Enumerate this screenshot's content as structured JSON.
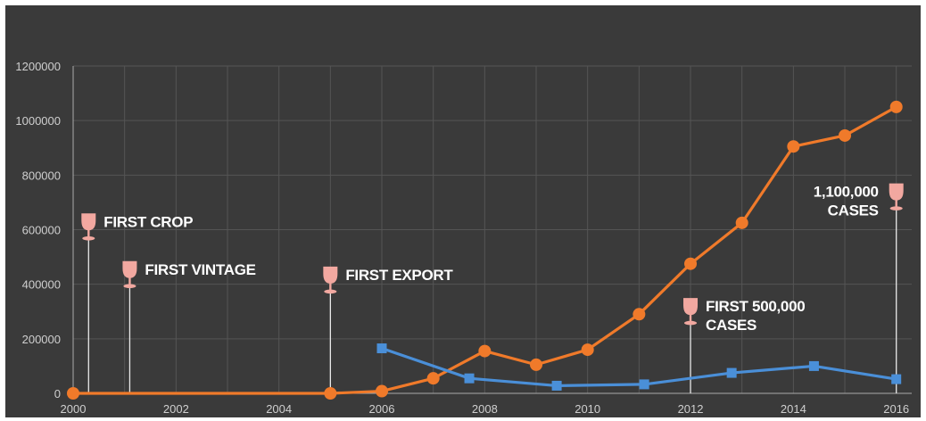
{
  "chart_data": {
    "type": "line",
    "title": "",
    "xlabel": "",
    "ylabel": "",
    "xlim": [
      2000,
      2016.3
    ],
    "ylim": [
      0,
      1200000
    ],
    "grid": true,
    "x_ticks": [
      2000,
      2002,
      2004,
      2006,
      2008,
      2010,
      2012,
      2014,
      2016
    ],
    "y_ticks": [
      0,
      200000,
      400000,
      600000,
      800000,
      1000000,
      1200000
    ],
    "colors": {
      "orange": "#f07a2a",
      "blue": "#4a8fd8",
      "glass": "#f2a8a0",
      "background": "#3a3a3a",
      "grid": "#555555"
    },
    "series": [
      {
        "color": "orange",
        "marker": "circle",
        "points": [
          [
            2000,
            0
          ],
          [
            2005,
            0
          ],
          [
            2006,
            8000
          ],
          [
            2007,
            55000
          ],
          [
            2008,
            155000
          ],
          [
            2009,
            105000
          ],
          [
            2010,
            160000
          ],
          [
            2011,
            290000
          ],
          [
            2012,
            475000
          ],
          [
            2013,
            625000
          ],
          [
            2014,
            905000
          ],
          [
            2015,
            945000
          ],
          [
            2016,
            1050000
          ]
        ]
      },
      {
        "color": "blue",
        "marker": "square",
        "points": [
          [
            2006,
            165000
          ],
          [
            2007.7,
            55000
          ],
          [
            2009.4,
            28000
          ],
          [
            2011.1,
            33000
          ],
          [
            2012.8,
            75000
          ],
          [
            2014.4,
            100000
          ],
          [
            2016,
            52000
          ]
        ]
      }
    ],
    "annotations": [
      {
        "lines": [
          "FIRST CROP"
        ],
        "x": 2000.3,
        "y": 640000,
        "align": "left"
      },
      {
        "lines": [
          "FIRST VINTAGE"
        ],
        "x": 2001.1,
        "y": 465000,
        "align": "left"
      },
      {
        "lines": [
          "FIRST EXPORT"
        ],
        "x": 2005,
        "y": 445000,
        "align": "left"
      },
      {
        "lines": [
          "FIRST 500,000",
          "CASES"
        ],
        "x": 2012,
        "y": 330000,
        "align": "left"
      },
      {
        "lines": [
          "1,100,000",
          "CASES"
        ],
        "x": 2016,
        "y": 750000,
        "align": "right"
      }
    ]
  }
}
